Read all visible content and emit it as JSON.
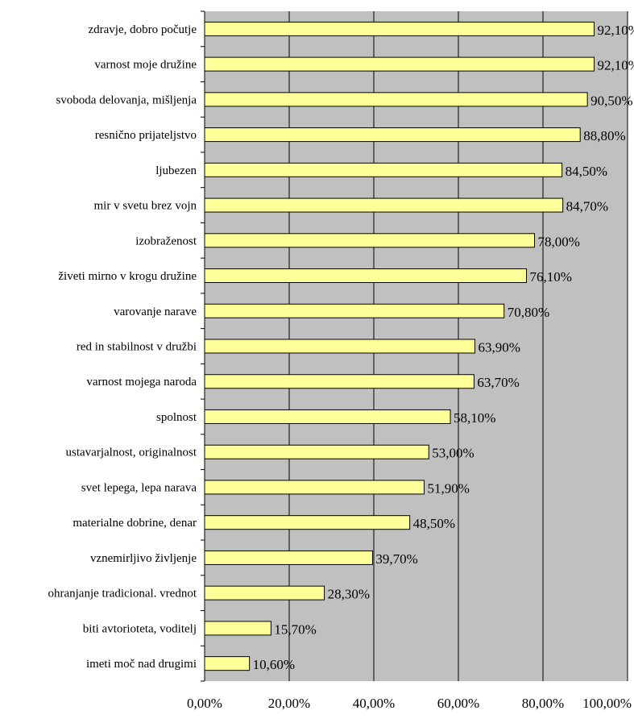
{
  "chart_data": {
    "type": "bar",
    "orientation": "horizontal",
    "categories": [
      "zdravje, dobro počutje",
      "varnost moje družine",
      "svoboda delovanja, mišljenja",
      "resnično prijateljstvo",
      "ljubezen",
      "mir v svetu brez vojn",
      "izobraženost",
      "živeti mirno v krogu družine",
      "varovanje narave",
      "red in stabilnost v družbi",
      "varnost mojega naroda",
      "spolnost",
      "ustavarjalnost, originalnost",
      "svet lepega, lepa narava",
      "materialne dobrine, denar",
      "vznemirljivo življenje",
      "ohranjanje tradicional. vrednot",
      "biti avtorioteta, voditelj",
      "imeti moč nad drugimi"
    ],
    "values": [
      92.1,
      92.1,
      90.5,
      88.8,
      84.5,
      84.7,
      78.0,
      76.1,
      70.8,
      63.9,
      63.7,
      58.1,
      53.0,
      51.9,
      48.5,
      39.7,
      28.3,
      15.7,
      10.6
    ],
    "value_labels": [
      "92,10%",
      "92,10%",
      "90,50%",
      "88,80%",
      "84,50%",
      "84,70%",
      "78,00%",
      "76,10%",
      "70,80%",
      "63,90%",
      "63,70%",
      "58,10%",
      "53,00%",
      "51,90%",
      "48,50%",
      "39,70%",
      "28,30%",
      "15,70%",
      "10,60%"
    ],
    "xlim": [
      0,
      100
    ],
    "x_ticks": [
      0,
      20,
      40,
      60,
      80,
      100
    ],
    "x_tick_labels": [
      "0,00%",
      "20,00%",
      "40,00%",
      "60,00%",
      "80,00%",
      "100,00%"
    ],
    "grid": true,
    "legend": "none",
    "title": "",
    "xlabel": "",
    "ylabel": "",
    "colors": {
      "plot_background": "#c0c0c0",
      "bar_fill": "#ffff99",
      "bar_stroke": "#000000",
      "gridline": "#000000"
    }
  }
}
